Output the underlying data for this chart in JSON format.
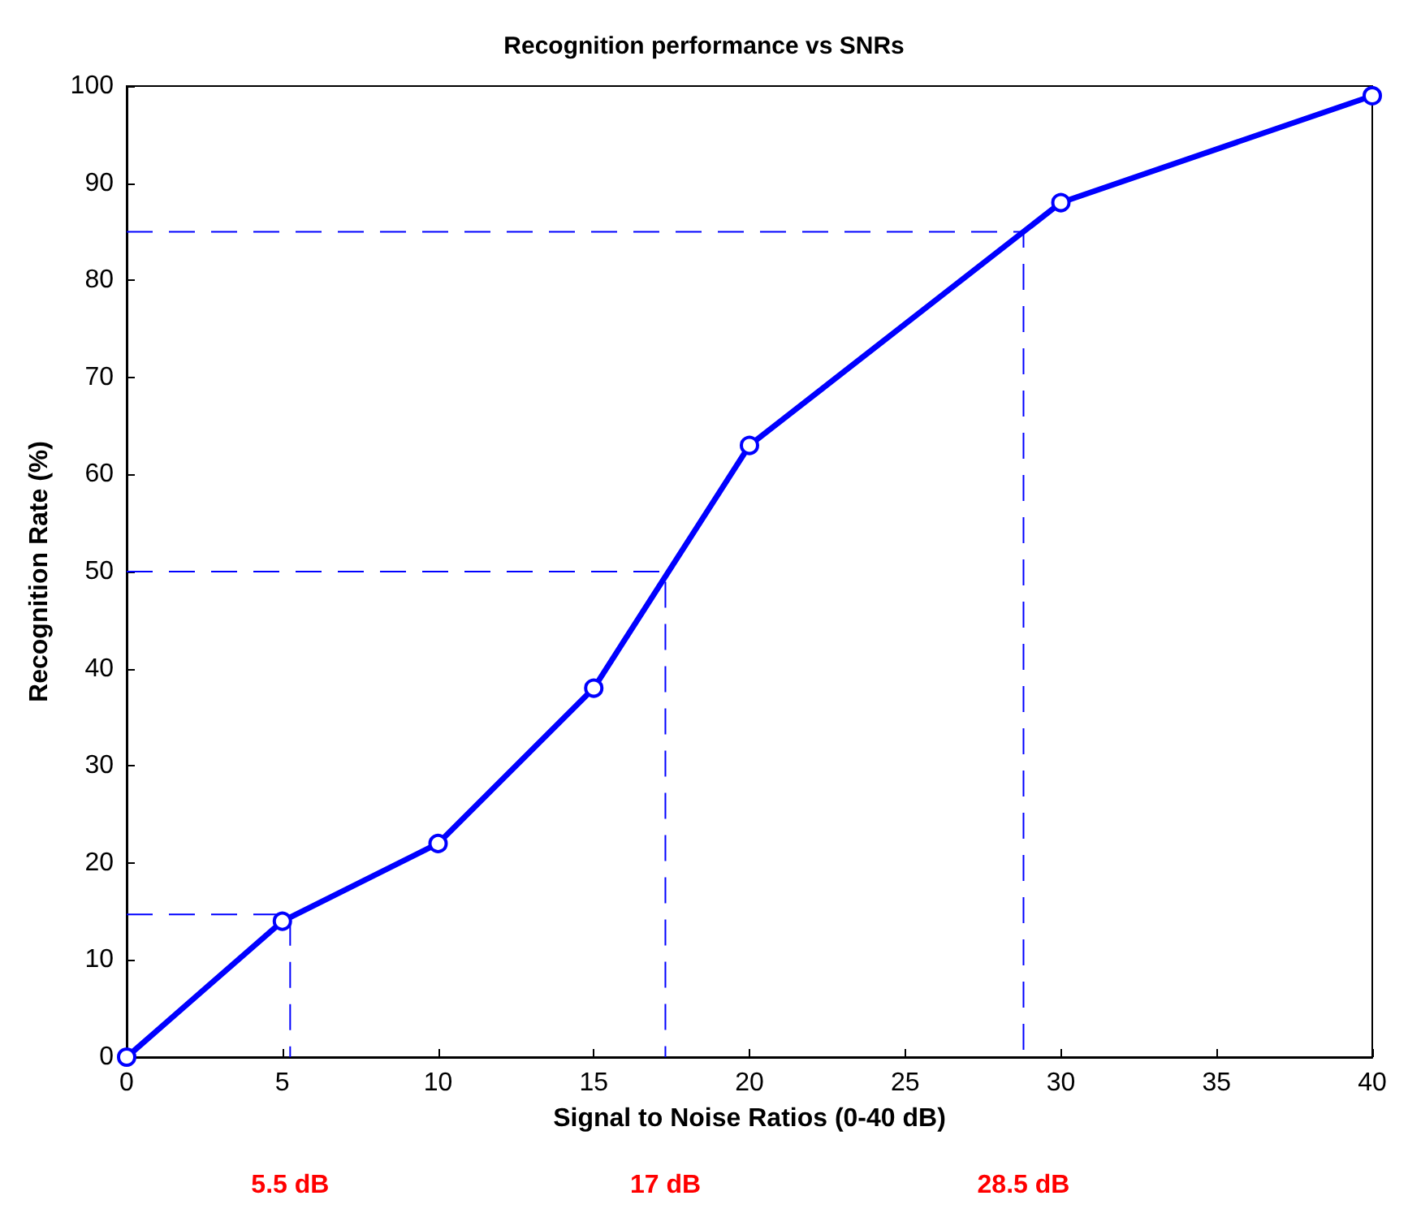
{
  "chart_data": {
    "type": "line",
    "title": "Recognition performance vs SNRs",
    "xlabel": "Signal to Noise Ratios (0-40 dB)",
    "ylabel": "Recognition Rate (%)",
    "xlim": [
      0,
      40
    ],
    "xticks": [
      0,
      5,
      10,
      15,
      20,
      25,
      30,
      35,
      40
    ],
    "ylim": [
      0,
      100
    ],
    "yticks": [
      0,
      10,
      20,
      30,
      40,
      50,
      60,
      70,
      80,
      90,
      100
    ],
    "series": [
      {
        "color": "#0000ff",
        "x": [
          0,
          5,
          10,
          15,
          20,
          30,
          40
        ],
        "values": [
          0,
          14,
          22,
          38,
          63,
          88,
          99
        ],
        "marker": "circle",
        "line_style": "solid"
      },
      {
        "color": "#0000ff",
        "x": [
          0,
          5.25,
          5.25
        ],
        "values": [
          14.7,
          14.7,
          0
        ],
        "marker": "none",
        "line_style": "dashed"
      },
      {
        "color": "#0000ff",
        "x": [
          0,
          17.3,
          17.3
        ],
        "values": [
          50,
          50,
          0
        ],
        "marker": "none",
        "line_style": "dashed"
      },
      {
        "color": "#0000ff",
        "x": [
          0,
          28.8,
          28.8
        ],
        "values": [
          85,
          85,
          0
        ],
        "marker": "none",
        "line_style": "dashed"
      }
    ],
    "annotations": [
      "5.5 dB",
      "17 dB",
      "28.5 dB"
    ]
  }
}
